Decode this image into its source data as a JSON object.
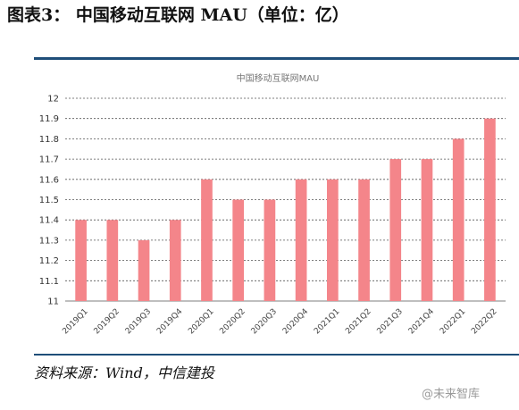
{
  "figure": {
    "title": "图表3：   中国移动互联网 MAU（单位：亿）",
    "source": "资料来源：Wind，中信建投",
    "watermark": "@未来智库"
  },
  "chart_data": {
    "type": "bar",
    "title": "中国移动互联网MAU",
    "xlabel": "",
    "ylabel": "",
    "categories": [
      "2019Q1",
      "2019Q2",
      "2019Q3",
      "2019Q4",
      "2020Q1",
      "2020Q2",
      "2020Q3",
      "2020Q4",
      "2021Q1",
      "2021Q2",
      "2021Q3",
      "2021Q4",
      "2022Q1",
      "2022Q2"
    ],
    "values": [
      11.4,
      11.4,
      11.3,
      11.4,
      11.6,
      11.5,
      11.5,
      11.6,
      11.6,
      11.6,
      11.7,
      11.7,
      11.8,
      11.9
    ],
    "ylim": [
      11,
      12
    ],
    "yticks": [
      "11",
      "11.1",
      "11.2",
      "11.3",
      "11.4",
      "11.5",
      "11.6",
      "11.7",
      "11.8",
      "11.9",
      "12"
    ],
    "grid": true,
    "legend": "none",
    "bar_color": "#f4858a",
    "grid_color": "#555555"
  }
}
